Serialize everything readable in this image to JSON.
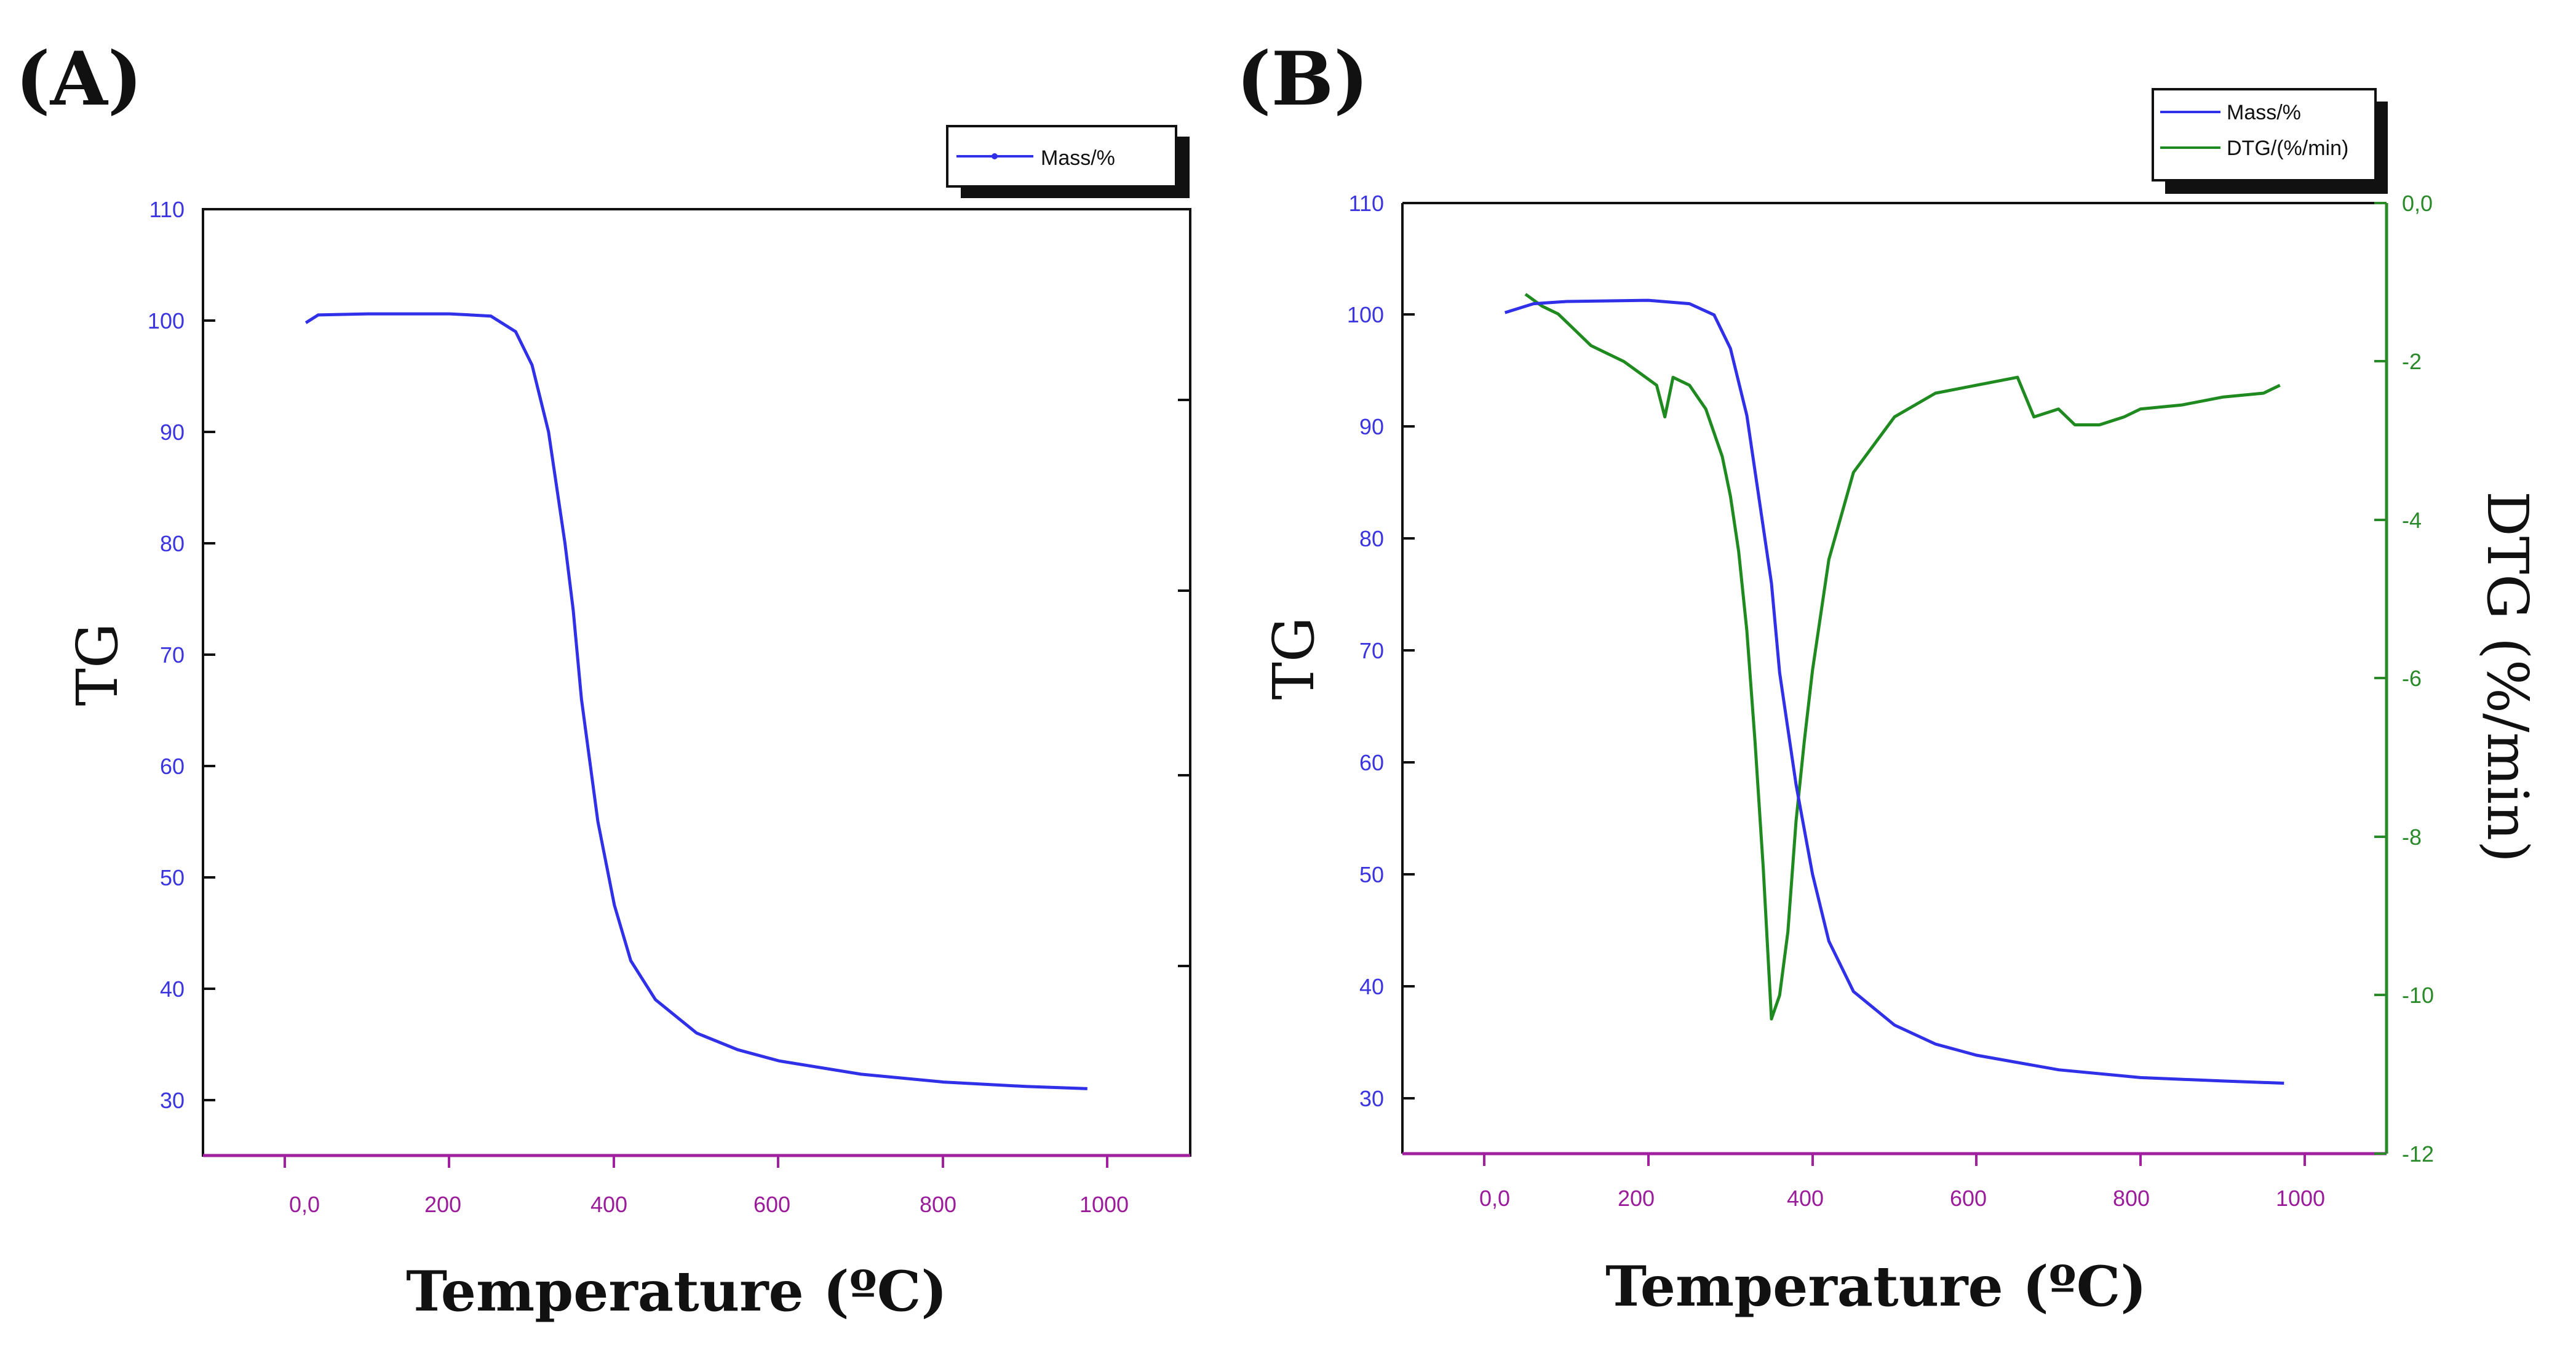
{
  "colors": {
    "mass": "#3030e8",
    "dtg": "#1f8a1f",
    "x_axis": "#a020a0",
    "frame": "#111111"
  },
  "panels": [
    {
      "label": "(A)",
      "legend": [
        "Mass/%"
      ],
      "xlabel": "Temperature (ºC)",
      "ylabel": "TG",
      "x_ticks": [
        "0,0",
        "200",
        "400",
        "600",
        "800",
        "1000"
      ],
      "y_ticks": [
        "110",
        "100",
        "90",
        "80",
        "70",
        "60",
        "50",
        "40",
        "30"
      ]
    },
    {
      "label": "(B)",
      "legend": [
        "Mass/%",
        "DTG/(%/min)"
      ],
      "xlabel": "Temperature (ºC)",
      "ylabel": "TG",
      "y2label": "DTG (%/min)",
      "x_ticks": [
        "0,0",
        "200",
        "400",
        "600",
        "800",
        "1000"
      ],
      "y_ticks": [
        "110",
        "100",
        "90",
        "80",
        "70",
        "60",
        "50",
        "40",
        "30"
      ],
      "y2_ticks": [
        "0,0",
        "-2",
        "-4",
        "-6",
        "-8",
        "-10",
        "-12"
      ]
    }
  ],
  "chart_data": [
    {
      "type": "line",
      "title": "(A)",
      "xlabel": "Temperature (ºC)",
      "ylabel": "TG",
      "xlim": [
        -100,
        1100
      ],
      "ylim": [
        25,
        110
      ],
      "series": [
        {
          "name": "Mass/%",
          "x": [
            25,
            40,
            100,
            200,
            250,
            280,
            300,
            320,
            340,
            350,
            360,
            380,
            400,
            420,
            450,
            500,
            550,
            600,
            700,
            800,
            900,
            975
          ],
          "values": [
            99.8,
            100.5,
            100.6,
            100.6,
            100.4,
            99.0,
            96.0,
            90.0,
            80.0,
            74.0,
            66.0,
            55.0,
            47.5,
            42.5,
            39.0,
            36.0,
            34.5,
            33.5,
            32.3,
            31.6,
            31.2,
            31.0
          ]
        }
      ]
    },
    {
      "type": "line",
      "title": "(B)",
      "xlabel": "Temperature (ºC)",
      "ylabel": "TG",
      "y2label": "DTG (%/min)",
      "xlim": [
        -100,
        1100
      ],
      "ylim": [
        25,
        110
      ],
      "y2lim": [
        -12,
        0
      ],
      "series": [
        {
          "name": "Mass/%",
          "axis": "left",
          "x": [
            25,
            60,
            100,
            200,
            250,
            280,
            300,
            320,
            340,
            350,
            360,
            380,
            400,
            420,
            450,
            500,
            550,
            600,
            700,
            800,
            900,
            975
          ],
          "values": [
            100.2,
            101.0,
            101.2,
            101.3,
            101.0,
            100.0,
            97.0,
            91.0,
            81.0,
            76.0,
            68.0,
            58.0,
            50.0,
            44.0,
            39.5,
            36.5,
            34.8,
            33.8,
            32.5,
            31.8,
            31.5,
            31.3
          ]
        },
        {
          "name": "DTG/(%/min)",
          "axis": "right",
          "x": [
            50,
            70,
            90,
            110,
            130,
            150,
            170,
            190,
            210,
            220,
            230,
            250,
            270,
            290,
            300,
            310,
            320,
            330,
            340,
            350,
            360,
            370,
            380,
            390,
            400,
            420,
            450,
            500,
            550,
            600,
            650,
            670,
            700,
            720,
            750,
            780,
            800,
            850,
            900,
            950,
            970
          ],
          "values": [
            -1.15,
            -1.3,
            -1.4,
            -1.6,
            -1.8,
            -1.9,
            -2.0,
            -2.15,
            -2.3,
            -2.7,
            -2.2,
            -2.3,
            -2.6,
            -3.2,
            -3.7,
            -4.4,
            -5.4,
            -6.8,
            -8.4,
            -10.3,
            -10.0,
            -9.2,
            -7.8,
            -6.8,
            -5.9,
            -4.5,
            -3.4,
            -2.7,
            -2.4,
            -2.3,
            -2.2,
            -2.7,
            -2.6,
            -2.8,
            -2.8,
            -2.7,
            -2.6,
            -2.55,
            -2.45,
            -2.4,
            -2.3
          ]
        }
      ]
    }
  ]
}
